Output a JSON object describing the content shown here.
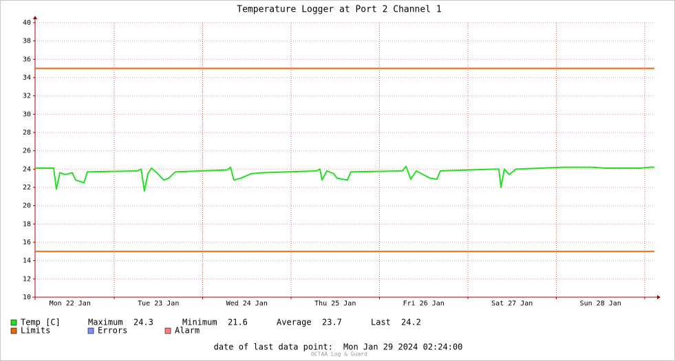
{
  "chart_data": {
    "type": "line",
    "title": "Temperature Logger at Port 2 Channel 1",
    "x": [
      22.105,
      22.315,
      22.346,
      22.385,
      22.447,
      22.525,
      22.564,
      22.658,
      22.696,
      23.265,
      23.304,
      23.342,
      23.381,
      23.42,
      23.482,
      23.56,
      23.615,
      23.693,
      24.276,
      24.315,
      24.354,
      24.432,
      24.549,
      24.665,
      25.288,
      25.327,
      25.35,
      25.405,
      25.482,
      25.521,
      25.638,
      25.677,
      26.261,
      26.3,
      26.354,
      26.416,
      26.494,
      26.572,
      26.65,
      26.689,
      27.311,
      27.35,
      27.374,
      27.412,
      27.467,
      27.545,
      28.089,
      28.401,
      28.556,
      28.946,
      29.062,
      29.109
    ],
    "series": [
      {
        "name": "Temp [C]",
        "color": "#22e022",
        "values": [
          24.1,
          24.1,
          21.8,
          23.6,
          23.4,
          23.6,
          22.8,
          22.5,
          23.7,
          23.8,
          24.0,
          21.6,
          23.5,
          24.1,
          23.6,
          22.8,
          23.0,
          23.7,
          23.9,
          24.2,
          22.8,
          23.0,
          23.5,
          23.6,
          23.8,
          24.0,
          22.8,
          23.8,
          23.5,
          23.0,
          22.8,
          23.7,
          23.8,
          24.3,
          22.9,
          23.8,
          23.4,
          23.0,
          22.9,
          23.8,
          24.0,
          24.0,
          22.0,
          24.0,
          23.4,
          24.0,
          24.2,
          24.2,
          24.1,
          24.1,
          24.2,
          24.2
        ]
      }
    ],
    "limits": {
      "name": "Limits",
      "color": "#e8680a",
      "values": [
        35,
        15
      ]
    },
    "extra_legend": [
      {
        "name": "Errors",
        "color": "#7f8fff"
      },
      {
        "name": "Alarm",
        "color": "#ff7f7f"
      }
    ],
    "stats": [
      {
        "label": "Maximum",
        "value": 24.3
      },
      {
        "label": "Minimum",
        "value": 21.6
      },
      {
        "label": "Average",
        "value": 23.7
      },
      {
        "label": "Last",
        "value": 24.2
      }
    ],
    "footer": {
      "label": "date of last data point:",
      "value": "Mon Jan 29 2024 02:24:00"
    },
    "credit": "OCTAA Log & Guard",
    "xlim": [
      22.105,
      29.109
    ],
    "xticks": [
      {
        "value": 22.5,
        "label": "Mon 22 Jan"
      },
      {
        "value": 23.5,
        "label": "Tue 23 Jan"
      },
      {
        "value": 24.5,
        "label": "Wed 24 Jan"
      },
      {
        "value": 25.5,
        "label": "Thu 25 Jan"
      },
      {
        "value": 26.5,
        "label": "Fri 26 Jan"
      },
      {
        "value": 27.5,
        "label": "Sat 27 Jan"
      },
      {
        "value": 28.5,
        "label": "Sun 28 Jan"
      }
    ],
    "xgrid": [
      23,
      24,
      25,
      26,
      27,
      28,
      29
    ],
    "ylim": [
      10,
      40
    ],
    "yticks": [
      10,
      12,
      14,
      16,
      18,
      20,
      22,
      24,
      26,
      28,
      30,
      32,
      34,
      36,
      38,
      40
    ],
    "grid": true
  }
}
